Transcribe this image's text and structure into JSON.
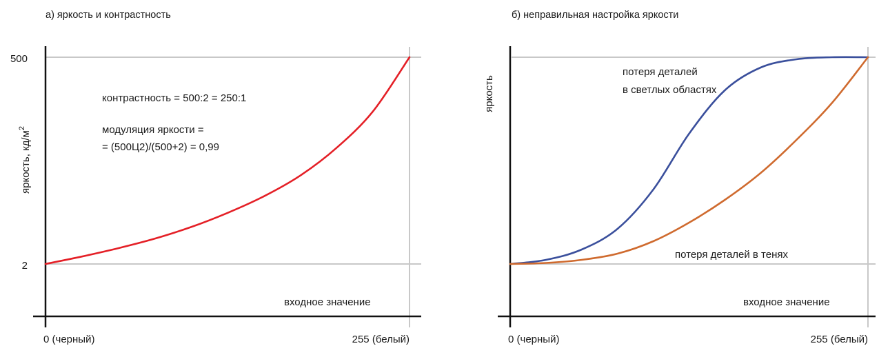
{
  "chart_data": [
    {
      "type": "line",
      "title": "а) яркость и контрастность",
      "ylabel": "яркость, кд/м",
      "ylabel_superscript": "2",
      "xlabel": "входное значение",
      "x_ticks": [
        "0 (черный)",
        "255 (белый)"
      ],
      "y_ticks": [
        "500",
        "2"
      ],
      "xlim": [
        0,
        255
      ],
      "ylim": [
        2,
        500
      ],
      "grid": true,
      "annotations": [
        "контрастность = 500:2 = 250:1",
        "модуляция яркости =",
        "= (500Ц2)/(500+2) = 0,99"
      ],
      "series": [
        {
          "name": "",
          "color": "#e41f26",
          "x": [
            0,
            25.5,
            51,
            76.5,
            102,
            127.5,
            153,
            178.5,
            204,
            229.5,
            255
          ],
          "y": [
            2,
            20,
            40,
            63,
            91,
            125,
            165,
            215,
            282,
            370,
            500
          ]
        }
      ]
    },
    {
      "type": "line",
      "title": "б) неправильная настройка яркости",
      "ylabel": "яркость",
      "xlabel": "входное значение",
      "x_ticks": [
        "0 (черный)",
        "255 (белый)"
      ],
      "xlim": [
        0,
        255
      ],
      "ylim": [
        0,
        1
      ],
      "grid": true,
      "annotations": [
        "потеря деталей",
        "в светлых областях",
        "потеря деталей в тенях"
      ],
      "series": [
        {
          "name": "",
          "color": "#3a4f9c",
          "x": [
            0,
            25.5,
            51,
            76.5,
            102,
            127.5,
            153,
            178.5,
            204,
            229.5,
            255
          ],
          "y": [
            0,
            0.02,
            0.07,
            0.17,
            0.36,
            0.63,
            0.84,
            0.95,
            0.99,
            1.0,
            1.0
          ]
        },
        {
          "name": "",
          "color": "#cf6a2e",
          "x": [
            0,
            25.5,
            51,
            76.5,
            102,
            127.5,
            153,
            178.5,
            204,
            229.5,
            255
          ],
          "y": [
            0,
            0.005,
            0.02,
            0.05,
            0.11,
            0.2,
            0.31,
            0.44,
            0.6,
            0.78,
            1.0
          ]
        }
      ]
    }
  ]
}
